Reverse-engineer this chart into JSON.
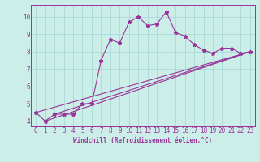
{
  "bg_color": "#cceee8",
  "line_color": "#993399",
  "grid_color": "#aad8d8",
  "xlabel": "Windchill (Refroidissement éolien,°C)",
  "xlim": [
    -0.5,
    23.5
  ],
  "ylim": [
    3.7,
    10.7
  ],
  "xticks": [
    0,
    1,
    2,
    3,
    4,
    5,
    6,
    7,
    8,
    9,
    10,
    11,
    12,
    13,
    14,
    15,
    16,
    17,
    18,
    19,
    20,
    21,
    22,
    23
  ],
  "yticks": [
    4,
    5,
    6,
    7,
    8,
    9,
    10
  ],
  "series1_x": [
    0,
    1,
    2,
    3,
    4,
    5,
    6,
    7,
    8,
    9,
    10,
    11,
    12,
    13,
    14,
    15,
    16,
    17,
    18,
    19,
    20,
    21,
    22,
    23
  ],
  "series1_y": [
    4.5,
    4.0,
    4.4,
    4.4,
    4.4,
    5.0,
    5.0,
    7.5,
    8.7,
    8.5,
    9.7,
    10.0,
    9.5,
    9.6,
    10.3,
    9.1,
    8.9,
    8.4,
    8.1,
    7.9,
    8.2,
    8.2,
    7.9,
    8.0
  ],
  "series2_x": [
    0,
    23
  ],
  "series2_y": [
    4.5,
    8.0
  ],
  "series3_x": [
    1,
    23
  ],
  "series3_y": [
    4.0,
    8.0
  ],
  "series4_x": [
    2,
    23
  ],
  "series4_y": [
    4.4,
    8.0
  ]
}
